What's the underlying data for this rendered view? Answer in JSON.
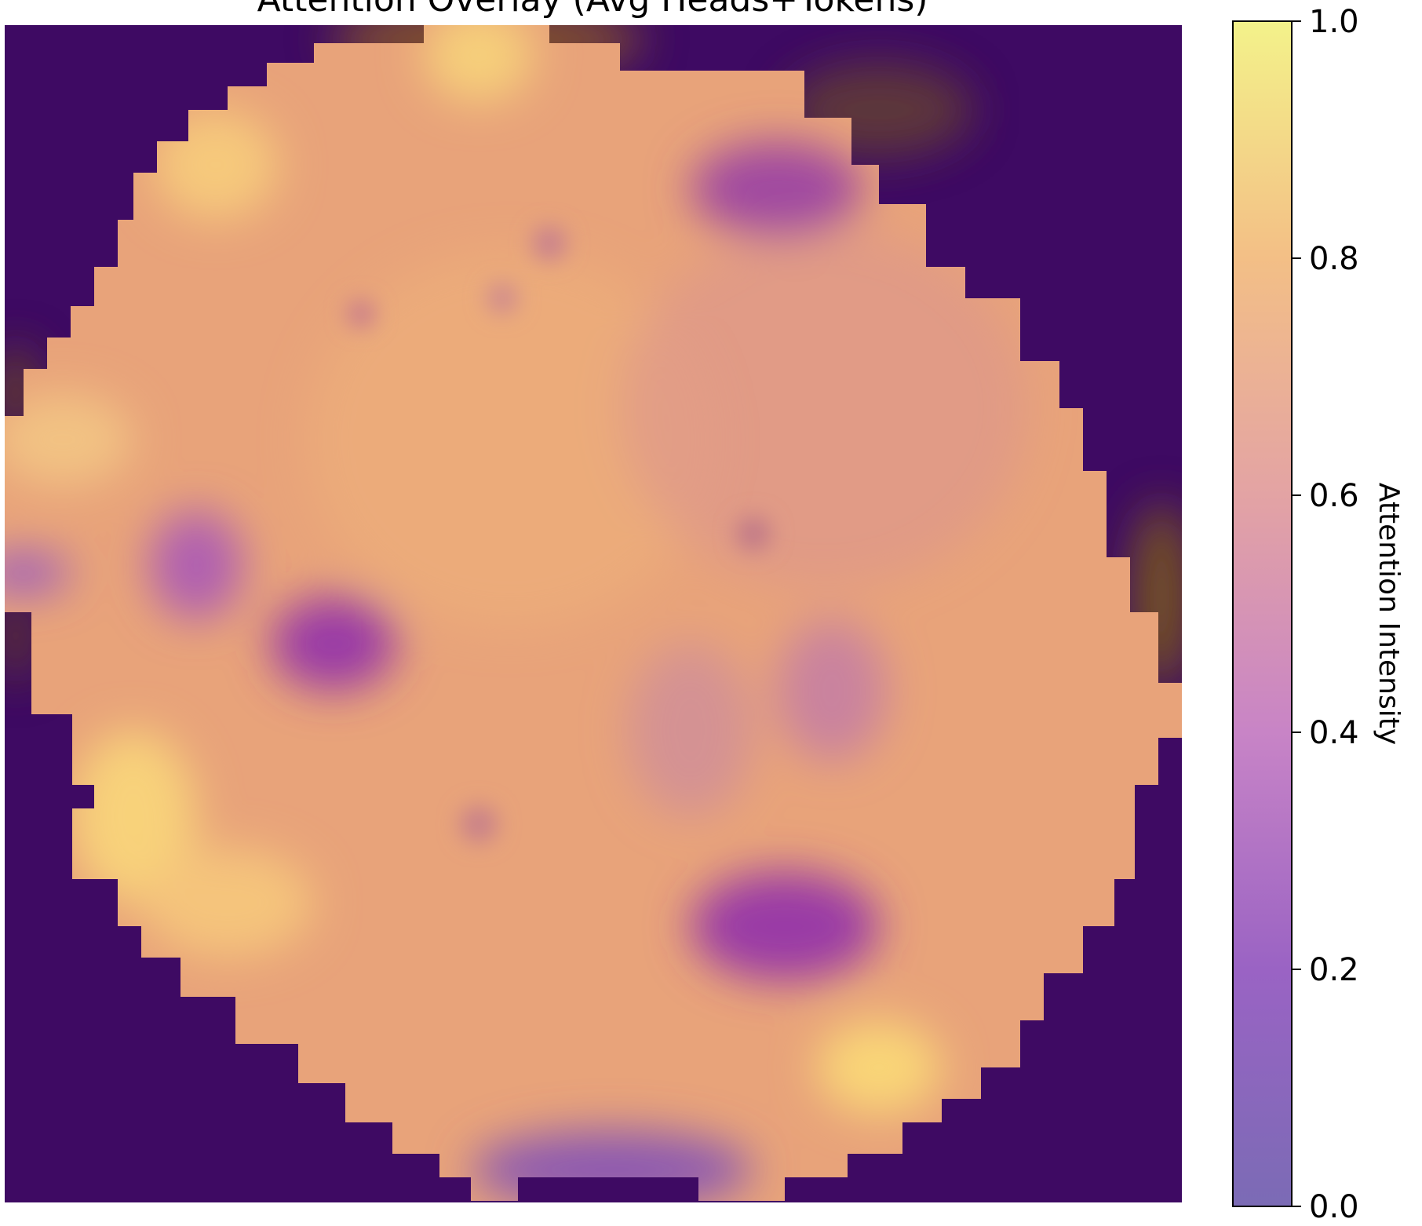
{
  "chart_data": {
    "type": "heatmap",
    "title": "Attention Overlay (Avg Heads+Tokens)",
    "colorbar": {
      "label": "Attention Intensity",
      "colormap": "plasma",
      "range": [
        0.0,
        1.0
      ],
      "ticks": [
        "0.0",
        "0.2",
        "0.4",
        "0.6",
        "0.8",
        "1.0"
      ],
      "tick_values": [
        0.0,
        0.2,
        0.4,
        0.6,
        0.8,
        1.0
      ]
    },
    "grid": false,
    "axes_visible": false,
    "attention_regions": [
      {
        "region": "circular-field-center",
        "intensity": 0.75
      },
      {
        "region": "background-outside-field",
        "intensity": 0.05
      },
      {
        "region": "left-cluster",
        "intensity": 0.25
      },
      {
        "region": "lower-right-cluster",
        "intensity": 0.22
      },
      {
        "region": "upper-right-cluster",
        "intensity": 0.35
      },
      {
        "region": "top-edge-highlight",
        "intensity": 0.92
      },
      {
        "region": "left-edge-highlight",
        "intensity": 0.88
      },
      {
        "region": "bottom-right-highlight",
        "intensity": 0.95
      }
    ]
  }
}
